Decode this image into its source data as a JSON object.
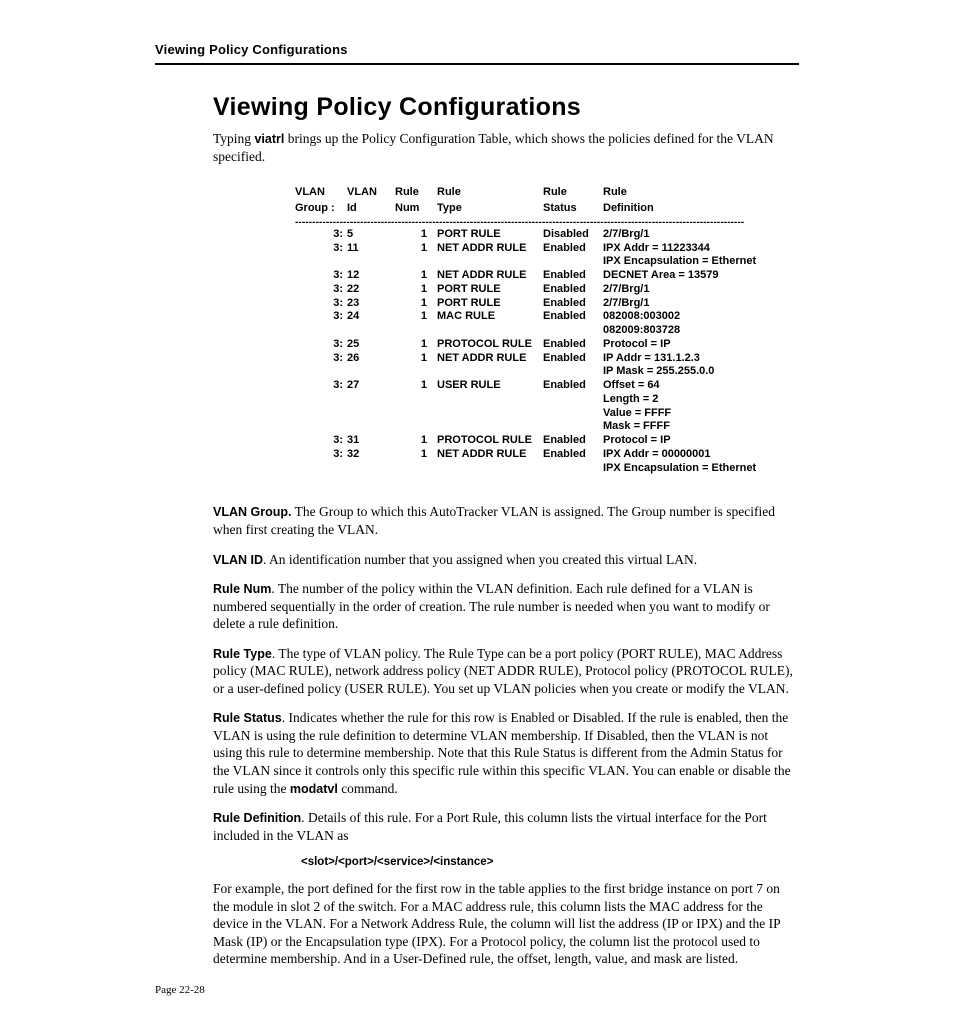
{
  "running_header": "Viewing Policy Configurations",
  "title": "Viewing Policy Configurations",
  "intro_prefix": "Typing ",
  "intro_cmd": "viatrl",
  "intro_suffix": " brings up the Policy Configuration Table, which shows the policies defined for the VLAN specified.",
  "table": {
    "headers": {
      "group_l1": "VLAN",
      "group_l2": "Group :",
      "id_l1": "VLAN",
      "id_l2": "Id",
      "num_l1": "Rule",
      "num_l2": "Num",
      "type_l1": "Rule",
      "type_l2": "Type",
      "status_l1": "Rule",
      "status_l2": "Status",
      "def_l1": "Rule",
      "def_l2": "Definition"
    },
    "dashline": "-----------------------------------------------------------------------------------------------------------------------------------",
    "rows": [
      {
        "g": "3:",
        "id": "5",
        "n": "1",
        "t": "PORT RULE",
        "s": "Disabled",
        "d": [
          "2/7/Brg/1"
        ]
      },
      {
        "g": "3:",
        "id": "11",
        "n": "1",
        "t": "NET ADDR RULE",
        "s": "Enabled",
        "d": [
          "IPX Addr = 11223344",
          "IPX Encapsulation = Ethernet"
        ]
      },
      {
        "g": "3:",
        "id": "12",
        "n": "1",
        "t": "NET ADDR RULE",
        "s": "Enabled",
        "d": [
          "DECNET Area = 13579"
        ]
      },
      {
        "g": "3:",
        "id": "22",
        "n": "1",
        "t": "PORT RULE",
        "s": "Enabled",
        "d": [
          "2/7/Brg/1"
        ]
      },
      {
        "g": "3:",
        "id": "23",
        "n": "1",
        "t": "PORT RULE",
        "s": "Enabled",
        "d": [
          "2/7/Brg/1"
        ]
      },
      {
        "g": "3:",
        "id": "24",
        "n": "1",
        "t": "MAC RULE",
        "s": "Enabled",
        "d": [
          "082008:003002",
          "082009:803728"
        ]
      },
      {
        "g": "3:",
        "id": "25",
        "n": "1",
        "t": "PROTOCOL RULE",
        "s": "Enabled",
        "d": [
          "Protocol = IP"
        ]
      },
      {
        "g": "3:",
        "id": "26",
        "n": "1",
        "t": "NET ADDR RULE",
        "s": "Enabled",
        "d": [
          "IP Addr = 131.1.2.3",
          "IP Mask = 255.255.0.0"
        ]
      },
      {
        "g": "3:",
        "id": "27",
        "n": "1",
        "t": "USER RULE",
        "s": "Enabled",
        "d": [
          "Offset = 64",
          "Length = 2",
          "Value = FFFF",
          "Mask = FFFF"
        ]
      },
      {
        "g": "3:",
        "id": "31",
        "n": "1",
        "t": "PROTOCOL RULE",
        "s": "Enabled",
        "d": [
          "Protocol = IP"
        ]
      },
      {
        "g": "3:",
        "id": "32",
        "n": "1",
        "t": "NET ADDR RULE",
        "s": "Enabled",
        "d": [
          "IPX Addr = 00000001",
          "IPX Encapsulation = Ethernet"
        ]
      }
    ]
  },
  "defs": {
    "vlan_group_term": "VLAN Group.",
    "vlan_group_text": " The Group to which this AutoTracker VLAN is assigned. The Group number is specified when first creating the VLAN.",
    "vlan_id_term": "VLAN ID",
    "vlan_id_text": ". An identification number that you assigned when you created this virtual LAN.",
    "rule_num_term": "Rule Num",
    "rule_num_text": ". The number of the policy within the VLAN definition. Each rule defined for a VLAN is numbered sequentially in the order of creation. The rule number is needed when you want to modify or delete a rule definition.",
    "rule_type_term": "Rule Type",
    "rule_type_text": ". The type of VLAN policy. The Rule Type can be a port policy (PORT RULE), MAC Address policy (MAC RULE), network address policy (NET ADDR RULE), Protocol policy (PROTOCOL RULE), or a user-defined policy (USER RULE). You set up VLAN policies when you create or modify the VLAN.",
    "rule_status_term": "Rule Status",
    "rule_status_text_a": ". Indicates whether the rule for this row is Enabled or Disabled. If the rule is enabled, then the VLAN is using the rule definition to determine VLAN membership. If Disabled, then the VLAN is not using this rule to determine membership. Note that this Rule Status is different from the Admin Status for the VLAN since it controls only this specific rule within this specific VLAN. You can enable or disable the rule using the ",
    "rule_status_cmd": "modatvl",
    "rule_status_text_b": " command.",
    "rule_def_term": "Rule Definition",
    "rule_def_text": ". Details of this rule. For a Port Rule, this column lists the virtual interface for the Port included in the VLAN as",
    "syntax": "<slot>/<port>/<service>/<instance>",
    "example": "For example, the port defined for the first row in the table applies to the first bridge instance on port 7 on the module in slot 2 of the switch. For a MAC address rule, this column lists the MAC address for the device in the VLAN. For a Network Address Rule, the column will list the address (IP or IPX) and the IP Mask (IP) or the Encapsulation type (IPX). For a Protocol policy, the column list the protocol used to determine membership. And in a User-Defined rule, the offset, length, value, and mask are listed."
  },
  "page_number": "Page 22-28"
}
